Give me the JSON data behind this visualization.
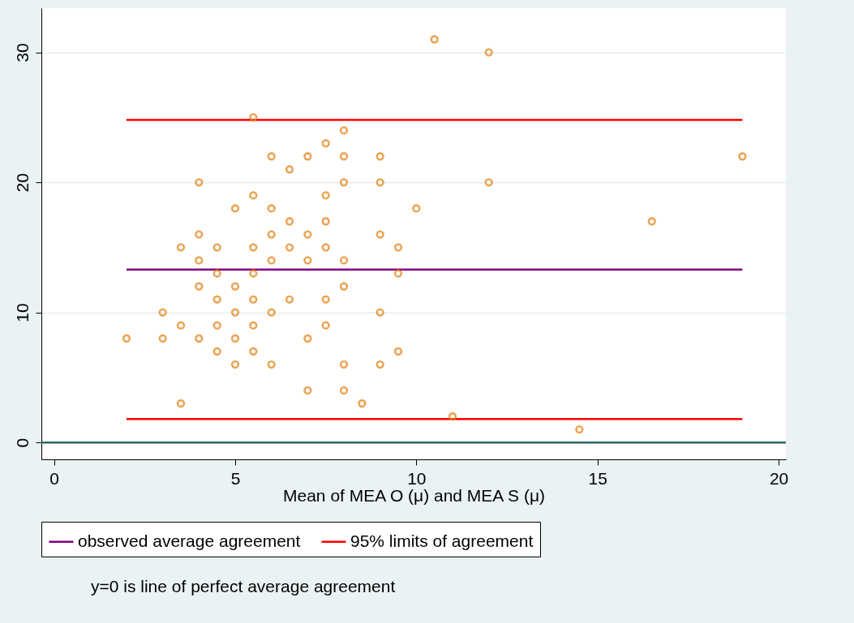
{
  "chart_data": {
    "type": "scatter",
    "xlabel": "Mean of MEA O (μ) and MEA S (μ)",
    "xlim": [
      -0.35,
      20.2
    ],
    "xticks": [
      0,
      5,
      10,
      15,
      20
    ],
    "ylim": [
      -1.3,
      33.4
    ],
    "yticks": [
      0,
      10,
      20,
      30
    ],
    "grid": "y",
    "legend": "bottom",
    "series": [
      {
        "marker": "circle",
        "color": "#e2800f",
        "x": [
          2,
          3,
          3,
          3.5,
          3.5,
          3.5,
          4,
          4,
          4,
          4,
          4,
          4.5,
          4.5,
          4.5,
          4.5,
          4.5,
          5,
          5,
          5,
          5,
          5,
          5.5,
          5.5,
          5.5,
          5.5,
          5.5,
          5.5,
          5.5,
          6,
          6,
          6,
          6,
          6,
          6,
          6.5,
          6.5,
          6.5,
          6.5,
          7,
          7,
          7,
          7,
          7,
          7.5,
          7.5,
          7.5,
          7.5,
          7.5,
          7.5,
          8,
          8,
          8,
          8,
          8,
          8,
          8,
          8.5,
          9,
          9,
          9,
          9,
          9,
          9.5,
          9.5,
          9.5,
          10,
          10.5,
          11,
          12,
          12,
          14.5,
          16.5,
          19
        ],
        "values": [
          8,
          10,
          8,
          15,
          9,
          3,
          20,
          16,
          14,
          12,
          8,
          15,
          13,
          11,
          9,
          7,
          18,
          12,
          10,
          8,
          6,
          25,
          19,
          15,
          13,
          11,
          9,
          7,
          22,
          18,
          16,
          14,
          10,
          6,
          21,
          17,
          15,
          11,
          22,
          16,
          14,
          8,
          4,
          23,
          19,
          17,
          15,
          11,
          9,
          24,
          22,
          20,
          14,
          12,
          6,
          4,
          3,
          22,
          20,
          16,
          10,
          6,
          15,
          13,
          7,
          18,
          31,
          2,
          30,
          20,
          1,
          17,
          22
        ]
      },
      {
        "type": "line",
        "name": "observed average agreement",
        "color": "#800080",
        "x": [
          2,
          19
        ],
        "values": [
          13.3,
          13.3
        ]
      },
      {
        "type": "line",
        "name": "95% limits of agreement",
        "color": "#ff0000",
        "x": [
          2,
          19
        ],
        "values": [
          24.8,
          24.8
        ]
      },
      {
        "type": "line",
        "color": "#ff0000",
        "x": [
          2,
          19
        ],
        "values": [
          1.8,
          1.8
        ]
      }
    ],
    "ref_lines": [
      {
        "axis": "y",
        "value": 0,
        "color": "#2a6868"
      }
    ],
    "annotations": [
      "y=0 is line of perfect average agreement"
    ]
  }
}
